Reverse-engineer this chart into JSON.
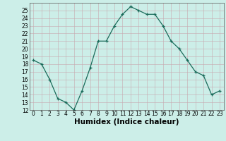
{
  "x": [
    0,
    1,
    2,
    3,
    4,
    5,
    6,
    7,
    8,
    9,
    10,
    11,
    12,
    13,
    14,
    15,
    16,
    17,
    18,
    19,
    20,
    21,
    22,
    23
  ],
  "y": [
    18.5,
    18,
    16,
    13.5,
    13,
    12,
    14.5,
    17.5,
    21,
    21,
    23,
    24.5,
    25.5,
    25,
    24.5,
    24.5,
    23,
    21,
    20,
    18.5,
    17,
    16.5,
    14,
    14.5
  ],
  "line_color": "#1a6b5a",
  "marker": "+",
  "bg_color": "#cceee8",
  "grid_color": "#c0d8d4",
  "xlabel": "Humidex (Indice chaleur)",
  "xlim": [
    -0.5,
    23.5
  ],
  "ylim": [
    12,
    26
  ],
  "yticks": [
    12,
    13,
    14,
    15,
    16,
    17,
    18,
    19,
    20,
    21,
    22,
    23,
    24,
    25
  ],
  "xticks": [
    0,
    1,
    2,
    3,
    4,
    5,
    6,
    7,
    8,
    9,
    10,
    11,
    12,
    13,
    14,
    15,
    16,
    17,
    18,
    19,
    20,
    21,
    22,
    23
  ],
  "tick_label_fontsize": 5.5,
  "xlabel_fontsize": 7.5
}
